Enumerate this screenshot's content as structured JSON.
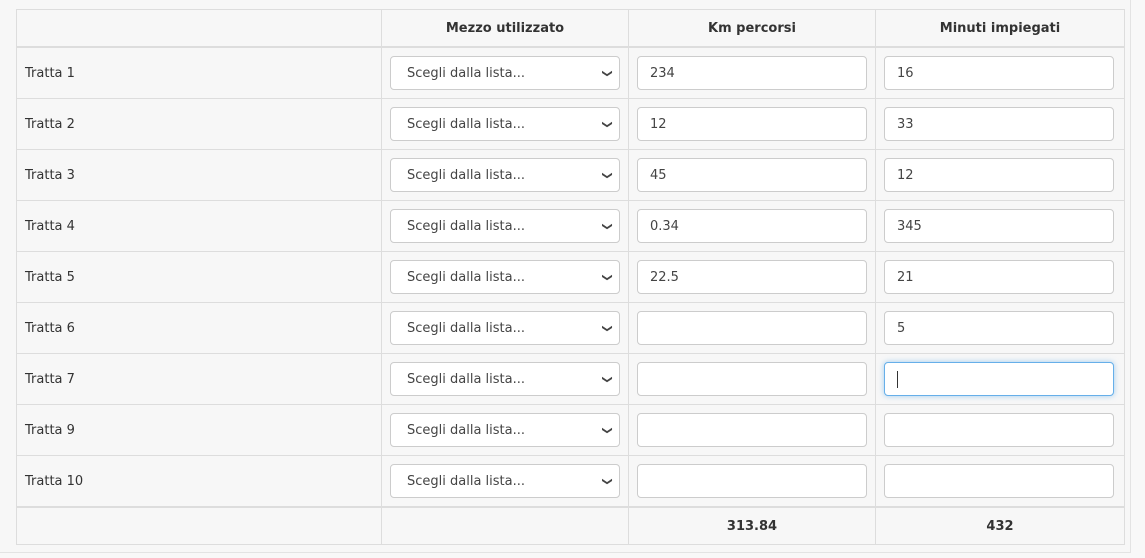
{
  "headers": [
    "",
    "Mezzo utilizzato",
    "Km percorsi",
    "Minuti impiegati"
  ],
  "select_placeholder": "Scegli dalla lista...",
  "rows": [
    {
      "label": "Tratta 1",
      "km": "234",
      "min": "16"
    },
    {
      "label": "Tratta 2",
      "km": "12",
      "min": "33"
    },
    {
      "label": "Tratta 3",
      "km": "45",
      "min": "12"
    },
    {
      "label": "Tratta 4",
      "km": "0.34",
      "min": "345"
    },
    {
      "label": "Tratta 5",
      "km": "22.5",
      "min": "21"
    },
    {
      "label": "Tratta 6",
      "km": "",
      "min": "5"
    },
    {
      "label": "Tratta 7",
      "km": "",
      "min": ""
    },
    {
      "label": "Tratta 9",
      "km": "",
      "min": ""
    },
    {
      "label": "Tratta 10",
      "km": "",
      "min": ""
    }
  ],
  "totals": {
    "km": "313.84",
    "min": "432"
  },
  "focused_row": 6
}
